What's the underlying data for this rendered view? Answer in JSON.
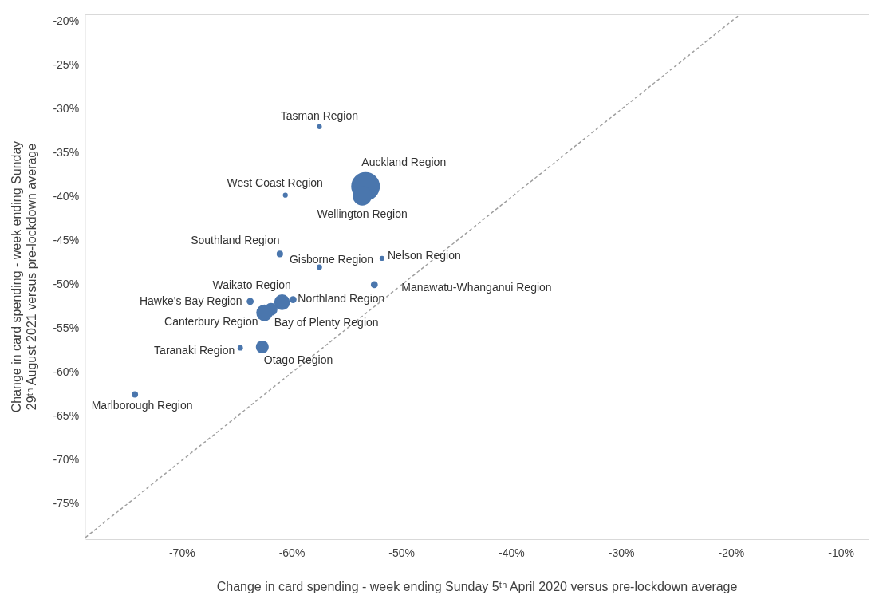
{
  "chart_data": {
    "type": "bubble",
    "xlabel": "Change in card spending - week ending Sunday 5ᵗʰ April 2020 versus pre-lockdown average",
    "ylabel": "Change in card spending - week ending Sunday\n29ᵗʰ August 2021 versus pre-lockdown average",
    "xlim": [
      -78.8,
      -7.5
    ],
    "ylim": [
      -79,
      -19.2
    ],
    "xticks": [
      {
        "value": -70,
        "label": "-70%"
      },
      {
        "value": -60,
        "label": "-60%"
      },
      {
        "value": -50,
        "label": "-50%"
      },
      {
        "value": -40,
        "label": "-40%"
      },
      {
        "value": -30,
        "label": "-30%"
      },
      {
        "value": -20,
        "label": "-20%"
      },
      {
        "value": -10,
        "label": "-10%"
      }
    ],
    "yticks": [
      {
        "value": -20,
        "label": "-20%"
      },
      {
        "value": -25,
        "label": "-25%"
      },
      {
        "value": -30,
        "label": "-30%"
      },
      {
        "value": -35,
        "label": "-35%"
      },
      {
        "value": -40,
        "label": "-40%"
      },
      {
        "value": -45,
        "label": "-45%"
      },
      {
        "value": -50,
        "label": "-50%"
      },
      {
        "value": -55,
        "label": "-55%"
      },
      {
        "value": -60,
        "label": "-60%"
      },
      {
        "value": -65,
        "label": "-65%"
      },
      {
        "value": -70,
        "label": "-70%"
      },
      {
        "value": -75,
        "label": "-75%"
      }
    ],
    "series": [
      {
        "color": "#4a76ad",
        "x": [
          -57.5,
          -53.3,
          -53.6,
          -60.6,
          -61.1,
          -57.5,
          -51.8,
          -52.5,
          -63.8,
          -60.9,
          -59.9,
          -61.9,
          -62.5,
          -64.7,
          -62.7,
          -74.3
        ],
        "values": [
          -32.0,
          -38.8,
          -39.9,
          -39.8,
          -46.5,
          -48.0,
          -47.0,
          -50.0,
          -51.9,
          -52.0,
          -51.7,
          -52.8,
          -53.2,
          -57.2,
          -57.1,
          -62.5
        ],
        "sizes": [
          0.03,
          1,
          0.44,
          0.03,
          0.05,
          0.035,
          0.03,
          0.06,
          0.06,
          0.3,
          0.06,
          0.2,
          0.33,
          0.035,
          0.2,
          0.05
        ]
      },
      {
        "type": "line",
        "color": "#a0a0a0",
        "line_style": "dashed",
        "marker": "none",
        "x": [
          -78.8,
          -19.2
        ],
        "values": [
          -78.8,
          -19.2
        ]
      }
    ],
    "annotations": [
      {
        "text": "Tasman Region",
        "x": -57.5,
        "y": -32.0
      },
      {
        "text": "Auckland Region",
        "x": -53.3,
        "y": -38.8
      },
      {
        "text": "Wellington Region",
        "x": -53.6,
        "y": -39.9
      },
      {
        "text": "West Coast Region",
        "x": -60.6,
        "y": -39.8
      },
      {
        "text": "Southland Region",
        "x": -61.1,
        "y": -46.5
      },
      {
        "text": "Gisborne Region",
        "x": -57.5,
        "y": -48.0
      },
      {
        "text": "Nelson Region",
        "x": -51.8,
        "y": -47.0
      },
      {
        "text": "Manawatu-Whanganui Region",
        "x": -52.5,
        "y": -50.0
      },
      {
        "text": "Hawke's Bay Region",
        "x": -63.8,
        "y": -51.9
      },
      {
        "text": "Waikato Region",
        "x": -60.9,
        "y": -52.0
      },
      {
        "text": "Northland Region",
        "x": -59.9,
        "y": -51.7
      },
      {
        "text": "Bay of Plenty Region",
        "x": -61.9,
        "y": -52.8
      },
      {
        "text": "Canterbury Region",
        "x": -62.5,
        "y": -53.2
      },
      {
        "text": "Taranaki Region",
        "x": -64.7,
        "y": -57.2
      },
      {
        "text": "Otago Region",
        "x": -62.7,
        "y": -57.1
      },
      {
        "text": "Marlborough Region",
        "x": -74.3,
        "y": -62.5
      }
    ]
  }
}
